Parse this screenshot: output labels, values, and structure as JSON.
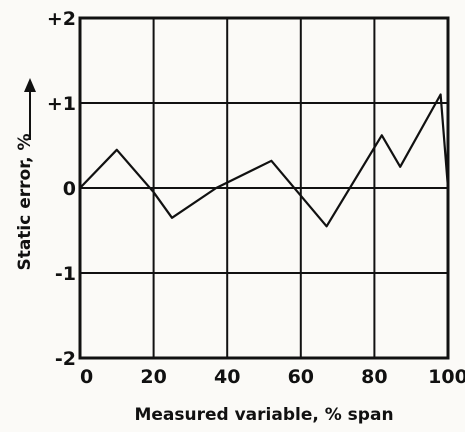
{
  "chart_data": {
    "type": "line",
    "xlabel": "Measured variable, % span",
    "ylabel": "Static error, %",
    "xlim": [
      0,
      100
    ],
    "ylim": [
      -2,
      2
    ],
    "x_ticks": [
      0,
      20,
      40,
      60,
      80,
      100
    ],
    "y_ticks": [
      2,
      1,
      0,
      -1,
      -2
    ],
    "x_tick_labels": [
      "0",
      "20",
      "40",
      "60",
      "80",
      "100"
    ],
    "y_tick_labels": [
      "+2",
      "+1",
      "0",
      "-1",
      "-2"
    ],
    "grid": true,
    "series": [
      {
        "x": [
          0,
          10,
          20,
          25,
          37,
          52,
          67,
          82,
          87,
          98,
          100
        ],
        "y": [
          0.0,
          0.45,
          -0.05,
          -0.35,
          0.0,
          0.32,
          -0.45,
          0.62,
          0.25,
          1.1,
          0.0
        ]
      }
    ]
  }
}
